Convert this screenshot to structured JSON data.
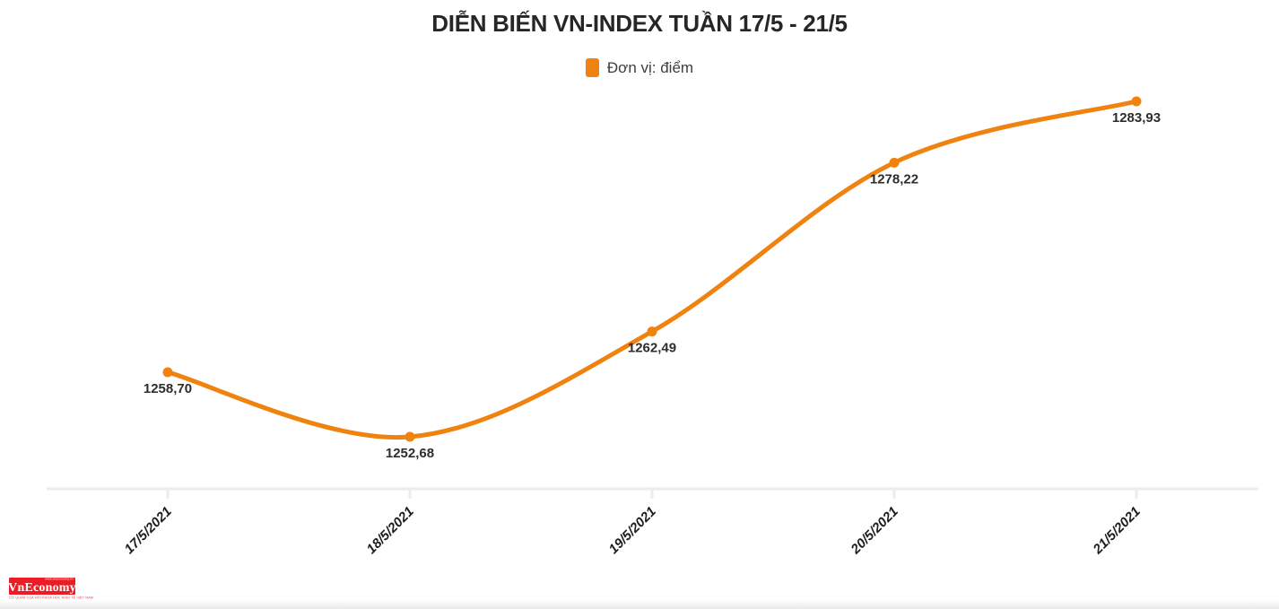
{
  "header": {
    "title": "DIỄN BIẾN VN-INDEX TUẦN 17/5 - 21/5"
  },
  "legend": {
    "label": "Đơn vị: điểm",
    "swatch_color": "#F0820F"
  },
  "chart_data": {
    "type": "line",
    "title": "DIỄN BIẾN VN-INDEX TUẦN 17/5 - 21/5",
    "unit_label": "Đơn vị: điểm",
    "categories": [
      "17/5/2021",
      "18/5/2021",
      "19/5/2021",
      "20/5/2021",
      "21/5/2021"
    ],
    "values": [
      1258.7,
      1252.68,
      1262.49,
      1278.22,
      1283.93
    ],
    "point_labels": [
      "1258,70",
      "1252,68",
      "1262,49",
      "1278,22",
      "1283,93"
    ],
    "xlabel": "",
    "ylabel": "điểm",
    "ylim": [
      1252.68,
      1283.93
    ],
    "grid": false,
    "legend_position": "top",
    "line_color": "#F0820F",
    "point_color": "#F0820F",
    "value_label_color": "#2d2d2d",
    "tick_label_color": "#1d1d1d",
    "axis_color": "#ececec",
    "x_tick_rotation": -45
  },
  "footer": {
    "logo": {
      "brand": "VnEconomy",
      "top_tagline": "www.vneconomy.vn",
      "bottom_tagline": "CƠ QUAN CỦA HỘI KHOA HỌC KINH TẾ VIỆT NAM",
      "box_color": "#ED1C24"
    }
  }
}
